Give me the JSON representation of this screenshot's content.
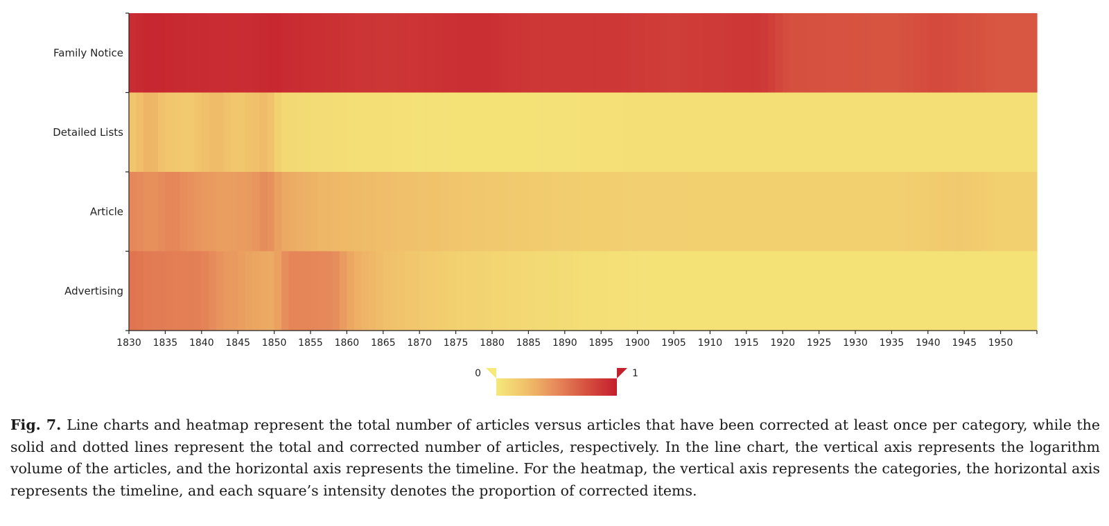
{
  "chart_data": {
    "type": "heatmap",
    "categories": [
      "Family Notice",
      "Detailed Lists",
      "Article",
      "Advertising"
    ],
    "x_ticks": [
      1830,
      1835,
      1840,
      1845,
      1850,
      1855,
      1860,
      1865,
      1870,
      1875,
      1880,
      1885,
      1890,
      1895,
      1900,
      1905,
      1910,
      1915,
      1920,
      1925,
      1930,
      1935,
      1940,
      1945,
      1950
    ],
    "x_range": [
      1830,
      1955
    ],
    "color_scale": {
      "min": 0,
      "max": 1,
      "min_label": "0",
      "max_label": "1",
      "low_color": "#f5e97a",
      "high_color": "#c41f2d"
    },
    "grid": false,
    "legend_position": "bottom",
    "rows": {
      "Family Notice": [
        [
          1830,
          0.93
        ],
        [
          1833,
          0.96
        ],
        [
          1838,
          0.94
        ],
        [
          1845,
          0.93
        ],
        [
          1850,
          0.95
        ],
        [
          1855,
          0.92
        ],
        [
          1865,
          0.88
        ],
        [
          1878,
          0.92
        ],
        [
          1885,
          0.88
        ],
        [
          1896,
          0.88
        ],
        [
          1900,
          0.86
        ],
        [
          1905,
          0.84
        ],
        [
          1910,
          0.86
        ],
        [
          1917,
          0.88
        ],
        [
          1921,
          0.75
        ],
        [
          1935,
          0.73
        ],
        [
          1941,
          0.78
        ],
        [
          1950,
          0.72
        ],
        [
          1955,
          0.72
        ]
      ],
      "Detailed Lists": [
        [
          1830,
          0.2
        ],
        [
          1833,
          0.32
        ],
        [
          1835,
          0.22
        ],
        [
          1838,
          0.18
        ],
        [
          1842,
          0.28
        ],
        [
          1845,
          0.2
        ],
        [
          1849,
          0.28
        ],
        [
          1851,
          0.1
        ],
        [
          1860,
          0.07
        ],
        [
          1870,
          0.05
        ],
        [
          1880,
          0.04
        ],
        [
          1890,
          0.05
        ],
        [
          1900,
          0.06
        ],
        [
          1920,
          0.06
        ],
        [
          1955,
          0.06
        ]
      ],
      "Article": [
        [
          1830,
          0.52
        ],
        [
          1833,
          0.46
        ],
        [
          1836,
          0.52
        ],
        [
          1839,
          0.45
        ],
        [
          1843,
          0.4
        ],
        [
          1847,
          0.42
        ],
        [
          1849,
          0.5
        ],
        [
          1851,
          0.36
        ],
        [
          1856,
          0.3
        ],
        [
          1862,
          0.27
        ],
        [
          1870,
          0.24
        ],
        [
          1880,
          0.2
        ],
        [
          1890,
          0.17
        ],
        [
          1900,
          0.16
        ],
        [
          1915,
          0.15
        ],
        [
          1935,
          0.15
        ],
        [
          1945,
          0.2
        ],
        [
          1950,
          0.15
        ],
        [
          1955,
          0.15
        ]
      ],
      "Advertising": [
        [
          1830,
          0.6
        ],
        [
          1833,
          0.56
        ],
        [
          1840,
          0.54
        ],
        [
          1843,
          0.44
        ],
        [
          1848,
          0.36
        ],
        [
          1850,
          0.34
        ],
        [
          1852,
          0.52
        ],
        [
          1858,
          0.5
        ],
        [
          1861,
          0.33
        ],
        [
          1866,
          0.24
        ],
        [
          1875,
          0.15
        ],
        [
          1885,
          0.1
        ],
        [
          1895,
          0.06
        ],
        [
          1905,
          0.04
        ],
        [
          1930,
          0.04
        ],
        [
          1955,
          0.04
        ]
      ]
    }
  },
  "caption": {
    "label": "Fig. 7.",
    "text": "Line charts and heatmap represent the total number of articles versus articles that have been corrected at least once per category, while the solid and dotted lines represent the total and corrected number of articles, respectively. In the line chart, the vertical axis represents the logarithm volume of the articles, and the horizontal axis represents the timeline. For the heatmap, the vertical axis represents the categories, the horizontal axis represents the timeline, and each square’s intensity denotes the proportion of corrected items."
  }
}
